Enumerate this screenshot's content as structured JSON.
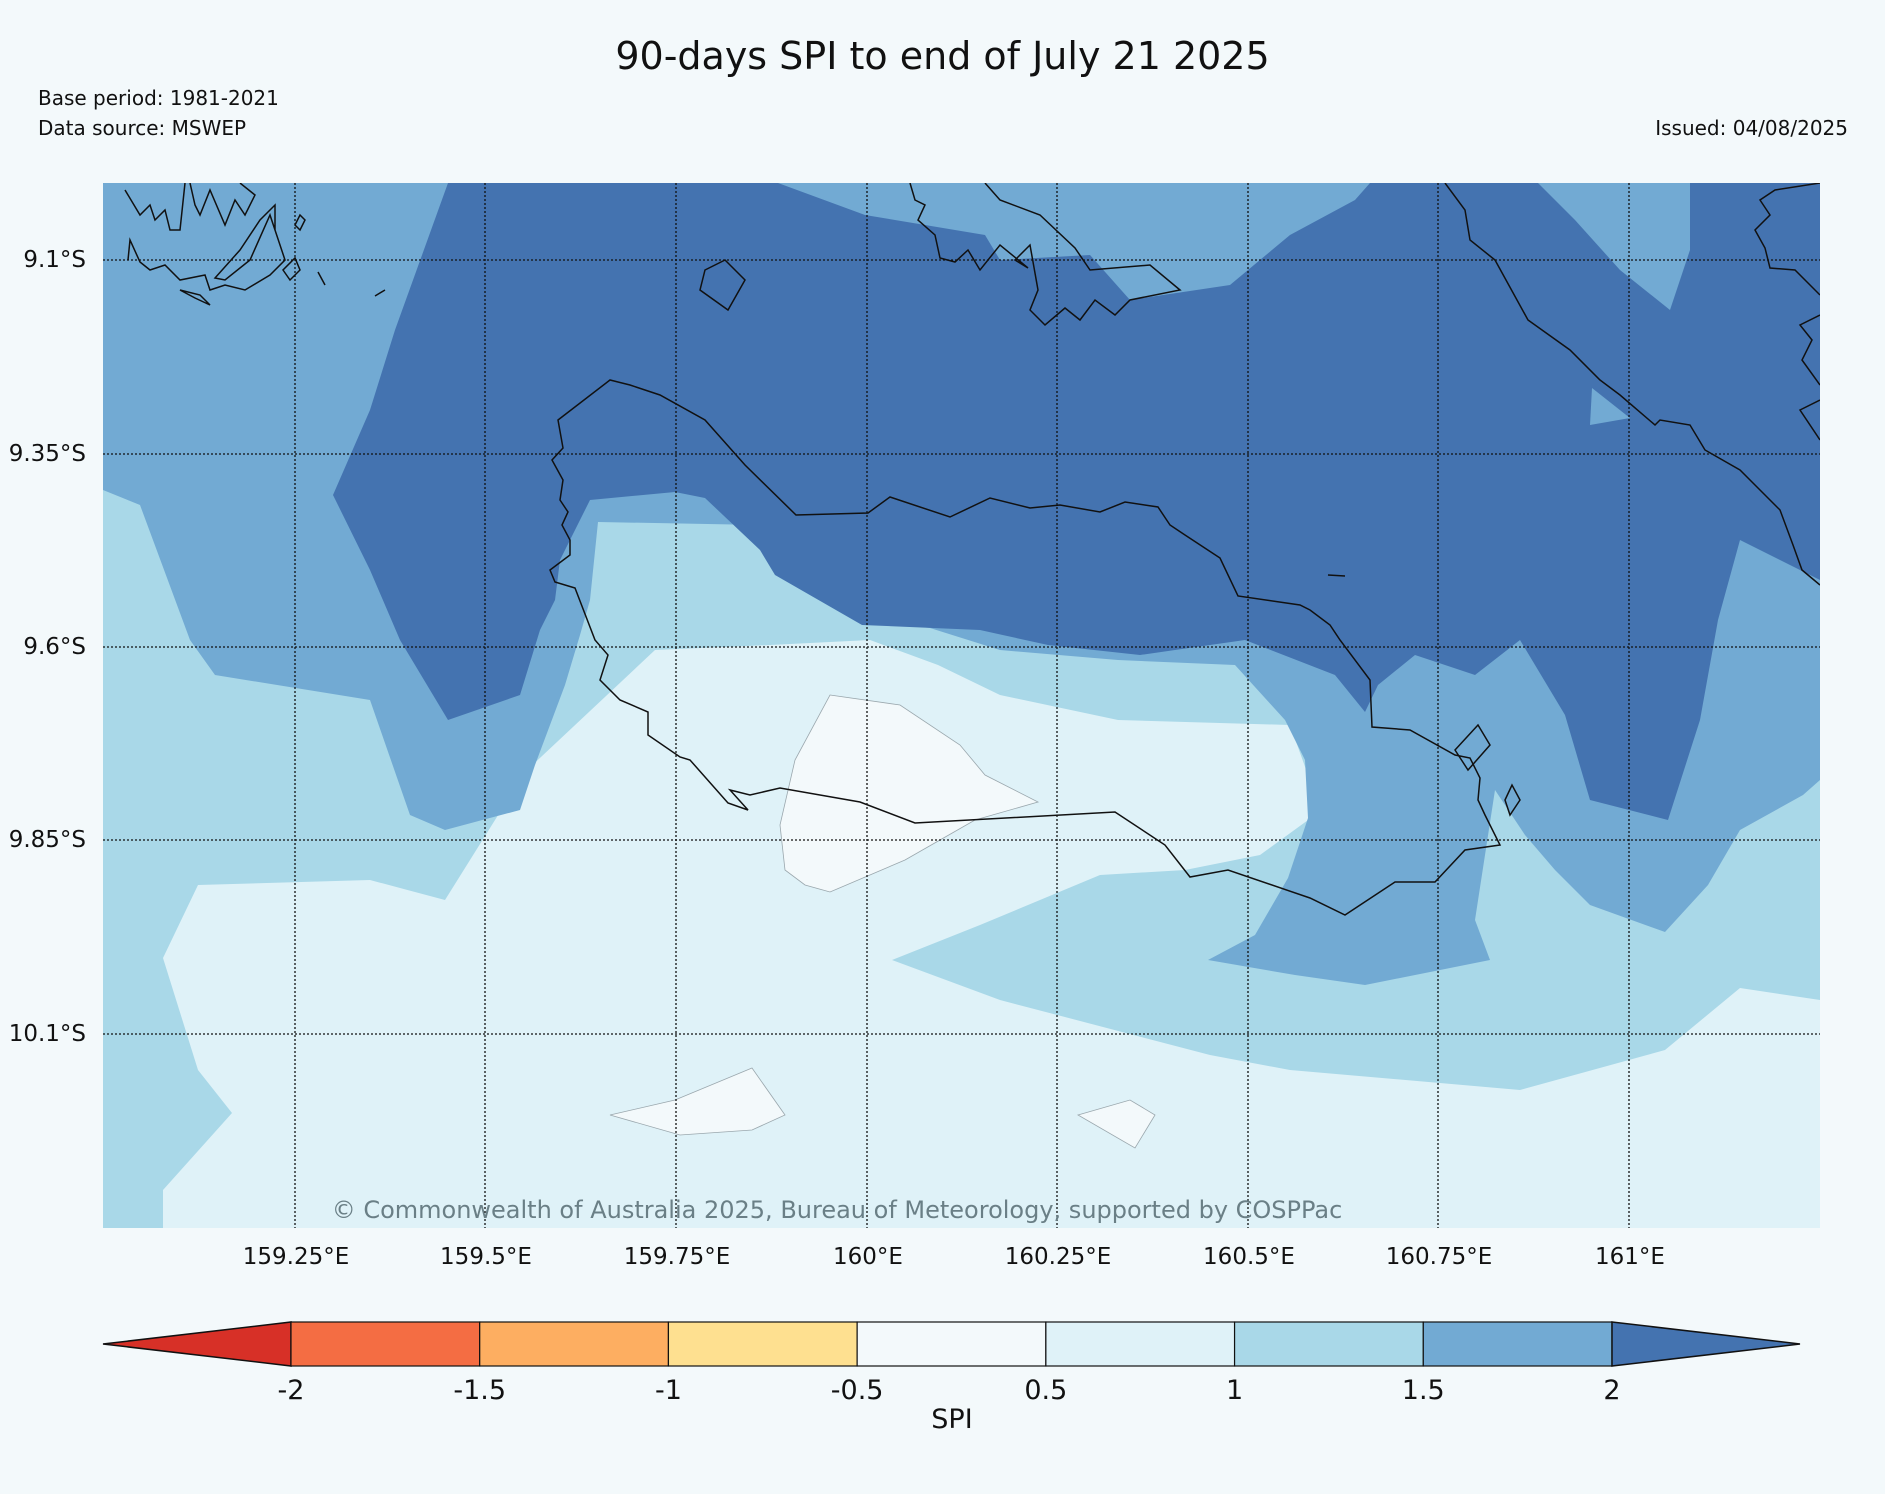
{
  "title": "90-days SPI to end of July 21 2025",
  "base_period": "Base period: 1981-2021",
  "data_source": "Data source: MSWEP",
  "issued": "Issued: 04/08/2025",
  "copyright": "© Commonwealth of Australia 2025, Bureau of Meteorology, supported by COSPPac",
  "map": {
    "lat_labels": [
      "9.1°S",
      "9.35°S",
      "9.6°S",
      "9.85°S",
      "10.1°S"
    ],
    "lon_labels": [
      "159.25°E",
      "159.5°E",
      "159.75°E",
      "160°E",
      "160.25°E",
      "160.5°E",
      "160.75°E",
      "161°E"
    ],
    "contour_colors": {
      "1.5_to_2": "#72aad3",
      "above_2": "#4473b0",
      "1_to_1.5": "#a9d8e8",
      "0.5_to_1": "#dff2f8",
      "-0.5_to_0.5": "#f3f9fb"
    }
  },
  "colorbar": {
    "label": "SPI",
    "ticks": [
      "-2",
      "-1.5",
      "-1",
      "-0.5",
      "0.5",
      "1",
      "1.5",
      "2"
    ],
    "colors": [
      "#d73027",
      "#f46d43",
      "#fdae61",
      "#fee090",
      "#f3f9fb",
      "#dff2f8",
      "#a9d8e8",
      "#72aad3",
      "#4473b0"
    ]
  }
}
